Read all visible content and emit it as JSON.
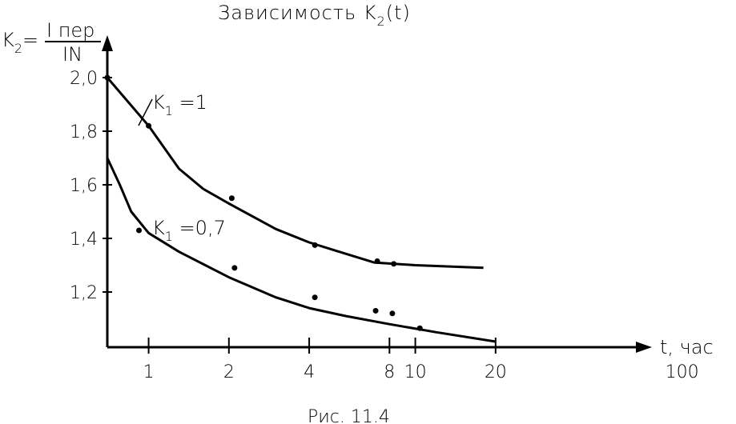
{
  "chart_data": {
    "type": "line",
    "title": "Зависимость K",
    "title_sub": "2",
    "title_tail": "(t)",
    "ylabel": {
      "k": "K",
      "sub": "2",
      "eq": "=",
      "numerator": "I пер",
      "denominator": "IN"
    },
    "xlabel": "t, час",
    "caption": "Рис. 11.4",
    "x_scale": "log",
    "xlim": [
      0.7,
      100
    ],
    "ylim": [
      1.0,
      2.0
    ],
    "x_ticks": [
      {
        "value": 1,
        "label": "1"
      },
      {
        "value": 2,
        "label": "2"
      },
      {
        "value": 4,
        "label": "4"
      },
      {
        "value": 8,
        "label": "8"
      },
      {
        "value": 10,
        "label": "10"
      },
      {
        "value": 20,
        "label": "20"
      },
      {
        "value": 100,
        "label": "100"
      }
    ],
    "y_ticks": [
      {
        "value": 1.2,
        "label": "1,2"
      },
      {
        "value": 1.4,
        "label": "1,4"
      },
      {
        "value": 1.6,
        "label": "1,6"
      },
      {
        "value": 1.8,
        "label": "1,8"
      },
      {
        "value": 2.0,
        "label": "2,0"
      }
    ],
    "grid": false,
    "series": [
      {
        "name": "K1 =1",
        "label_k": "K",
        "label_sub": "1",
        "label_tail": " =1",
        "color": "#000000",
        "curve": [
          [
            0.7,
            2.0
          ],
          [
            1.0,
            1.82
          ],
          [
            1.3,
            1.66
          ],
          [
            1.6,
            1.585
          ],
          [
            2.0,
            1.53
          ],
          [
            3.0,
            1.435
          ],
          [
            4.0,
            1.385
          ],
          [
            5.0,
            1.355
          ],
          [
            7.0,
            1.31
          ],
          [
            10.0,
            1.3
          ],
          [
            18.0,
            1.29
          ]
        ],
        "points": [
          [
            0.7,
            2.0
          ],
          [
            1.0,
            1.82
          ],
          [
            2.05,
            1.55
          ],
          [
            4.2,
            1.375
          ],
          [
            7.2,
            1.315
          ],
          [
            8.3,
            1.305
          ]
        ]
      },
      {
        "name": "K1 =0,7",
        "label_k": "K",
        "label_sub": "1",
        "label_tail": " =0,7",
        "color": "#000000",
        "curve": [
          [
            0.7,
            1.7
          ],
          [
            0.78,
            1.6
          ],
          [
            0.86,
            1.5
          ],
          [
            1.0,
            1.42
          ],
          [
            1.3,
            1.35
          ],
          [
            2.0,
            1.255
          ],
          [
            3.0,
            1.18
          ],
          [
            4.0,
            1.14
          ],
          [
            5.5,
            1.11
          ],
          [
            8.0,
            1.08
          ],
          [
            12.0,
            1.05
          ],
          [
            20.0,
            1.015
          ]
        ],
        "points": [
          [
            0.92,
            1.43
          ],
          [
            2.1,
            1.29
          ],
          [
            4.2,
            1.18
          ],
          [
            7.1,
            1.13
          ],
          [
            8.2,
            1.12
          ],
          [
            10.4,
            1.065
          ]
        ]
      }
    ]
  }
}
